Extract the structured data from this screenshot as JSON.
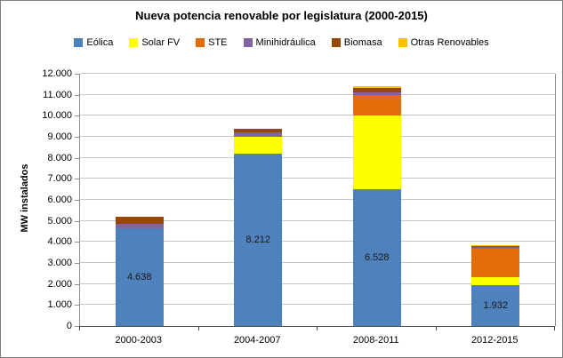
{
  "chart_data": {
    "type": "bar",
    "stacked": true,
    "title": "Nueva potencia renovable por legislatura (2000-2015)",
    "ylabel": "MW instalados",
    "xlabel": "",
    "ylim": [
      0,
      12000
    ],
    "ytick_step": 1000,
    "ytick_labels": [
      "0",
      "1.000",
      "2.000",
      "3.000",
      "4.000",
      "5.000",
      "6.000",
      "7.000",
      "8.000",
      "9.000",
      "10.000",
      "11.000",
      "12.000"
    ],
    "categories": [
      "2000-2003",
      "2004-2007",
      "2008-2011",
      "2012-2015"
    ],
    "series": [
      {
        "name": "Eólica",
        "color": "#4F81BD",
        "values": [
          4638,
          8212,
          6528,
          1932
        ],
        "data_labels": [
          "4.638",
          "8.212",
          "6.528",
          "1.932"
        ]
      },
      {
        "name": "Solar FV",
        "color": "#FFFF00",
        "values": [
          0,
          790,
          3500,
          400
        ]
      },
      {
        "name": "STE",
        "color": "#E36C0A",
        "values": [
          0,
          0,
          950,
          1330
        ]
      },
      {
        "name": "Minihidráulica",
        "color": "#8064A2",
        "values": [
          210,
          210,
          150,
          110
        ]
      },
      {
        "name": "Biomasa",
        "color": "#974706",
        "values": [
          350,
          170,
          200,
          40
        ]
      },
      {
        "name": "Otras Renovables",
        "color": "#FFC000",
        "values": [
          0,
          0,
          80,
          30
        ]
      }
    ],
    "legend_position": "top",
    "grid": true,
    "totals": [
      5198,
      9382,
      11408,
      3842
    ]
  },
  "colors": {
    "background": "#FFFFFF",
    "border": "#7F7F7F",
    "gridline": "#C6C6C6",
    "y_axis": "#8C8C8C",
    "x_axis": "#4D4D4D",
    "text": "#000000"
  }
}
